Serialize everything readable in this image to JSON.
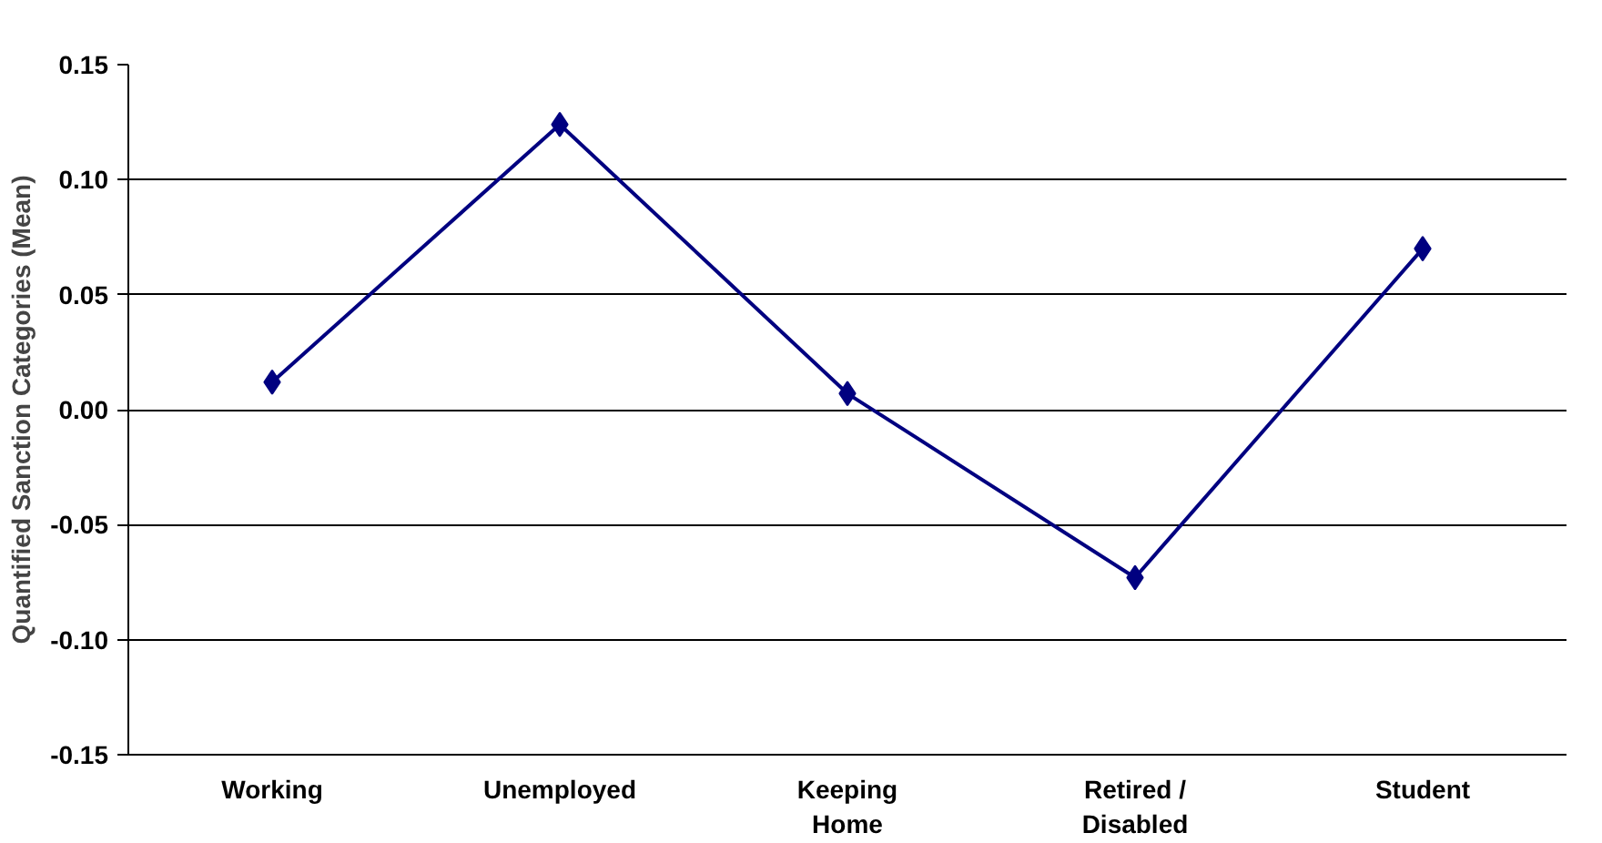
{
  "chart_data": {
    "type": "line",
    "ylabel": "Quantified Sanction Categories (Mean)",
    "categories": [
      "Working",
      "Unemployed",
      "Keeping\nHome",
      "Retired /\nDisabled",
      "Student"
    ],
    "series": [
      {
        "color": "#000080",
        "values": [
          0.012,
          0.124,
          0.007,
          -0.073,
          0.07
        ]
      }
    ],
    "ylim": [
      -0.15,
      0.15
    ],
    "yticks": [
      {
        "value": -0.15,
        "label": "-0.15"
      },
      {
        "value": -0.1,
        "label": "-0.10"
      },
      {
        "value": -0.05,
        "label": "-0.05"
      },
      {
        "value": 0,
        "label": "0.00"
      },
      {
        "value": 0.05,
        "label": "0.05"
      },
      {
        "value": 0.1,
        "label": "0.10"
      },
      {
        "value": 0.15,
        "label": "0.15"
      }
    ],
    "grid": "y",
    "marker": "diamond",
    "line_style": "solid"
  }
}
